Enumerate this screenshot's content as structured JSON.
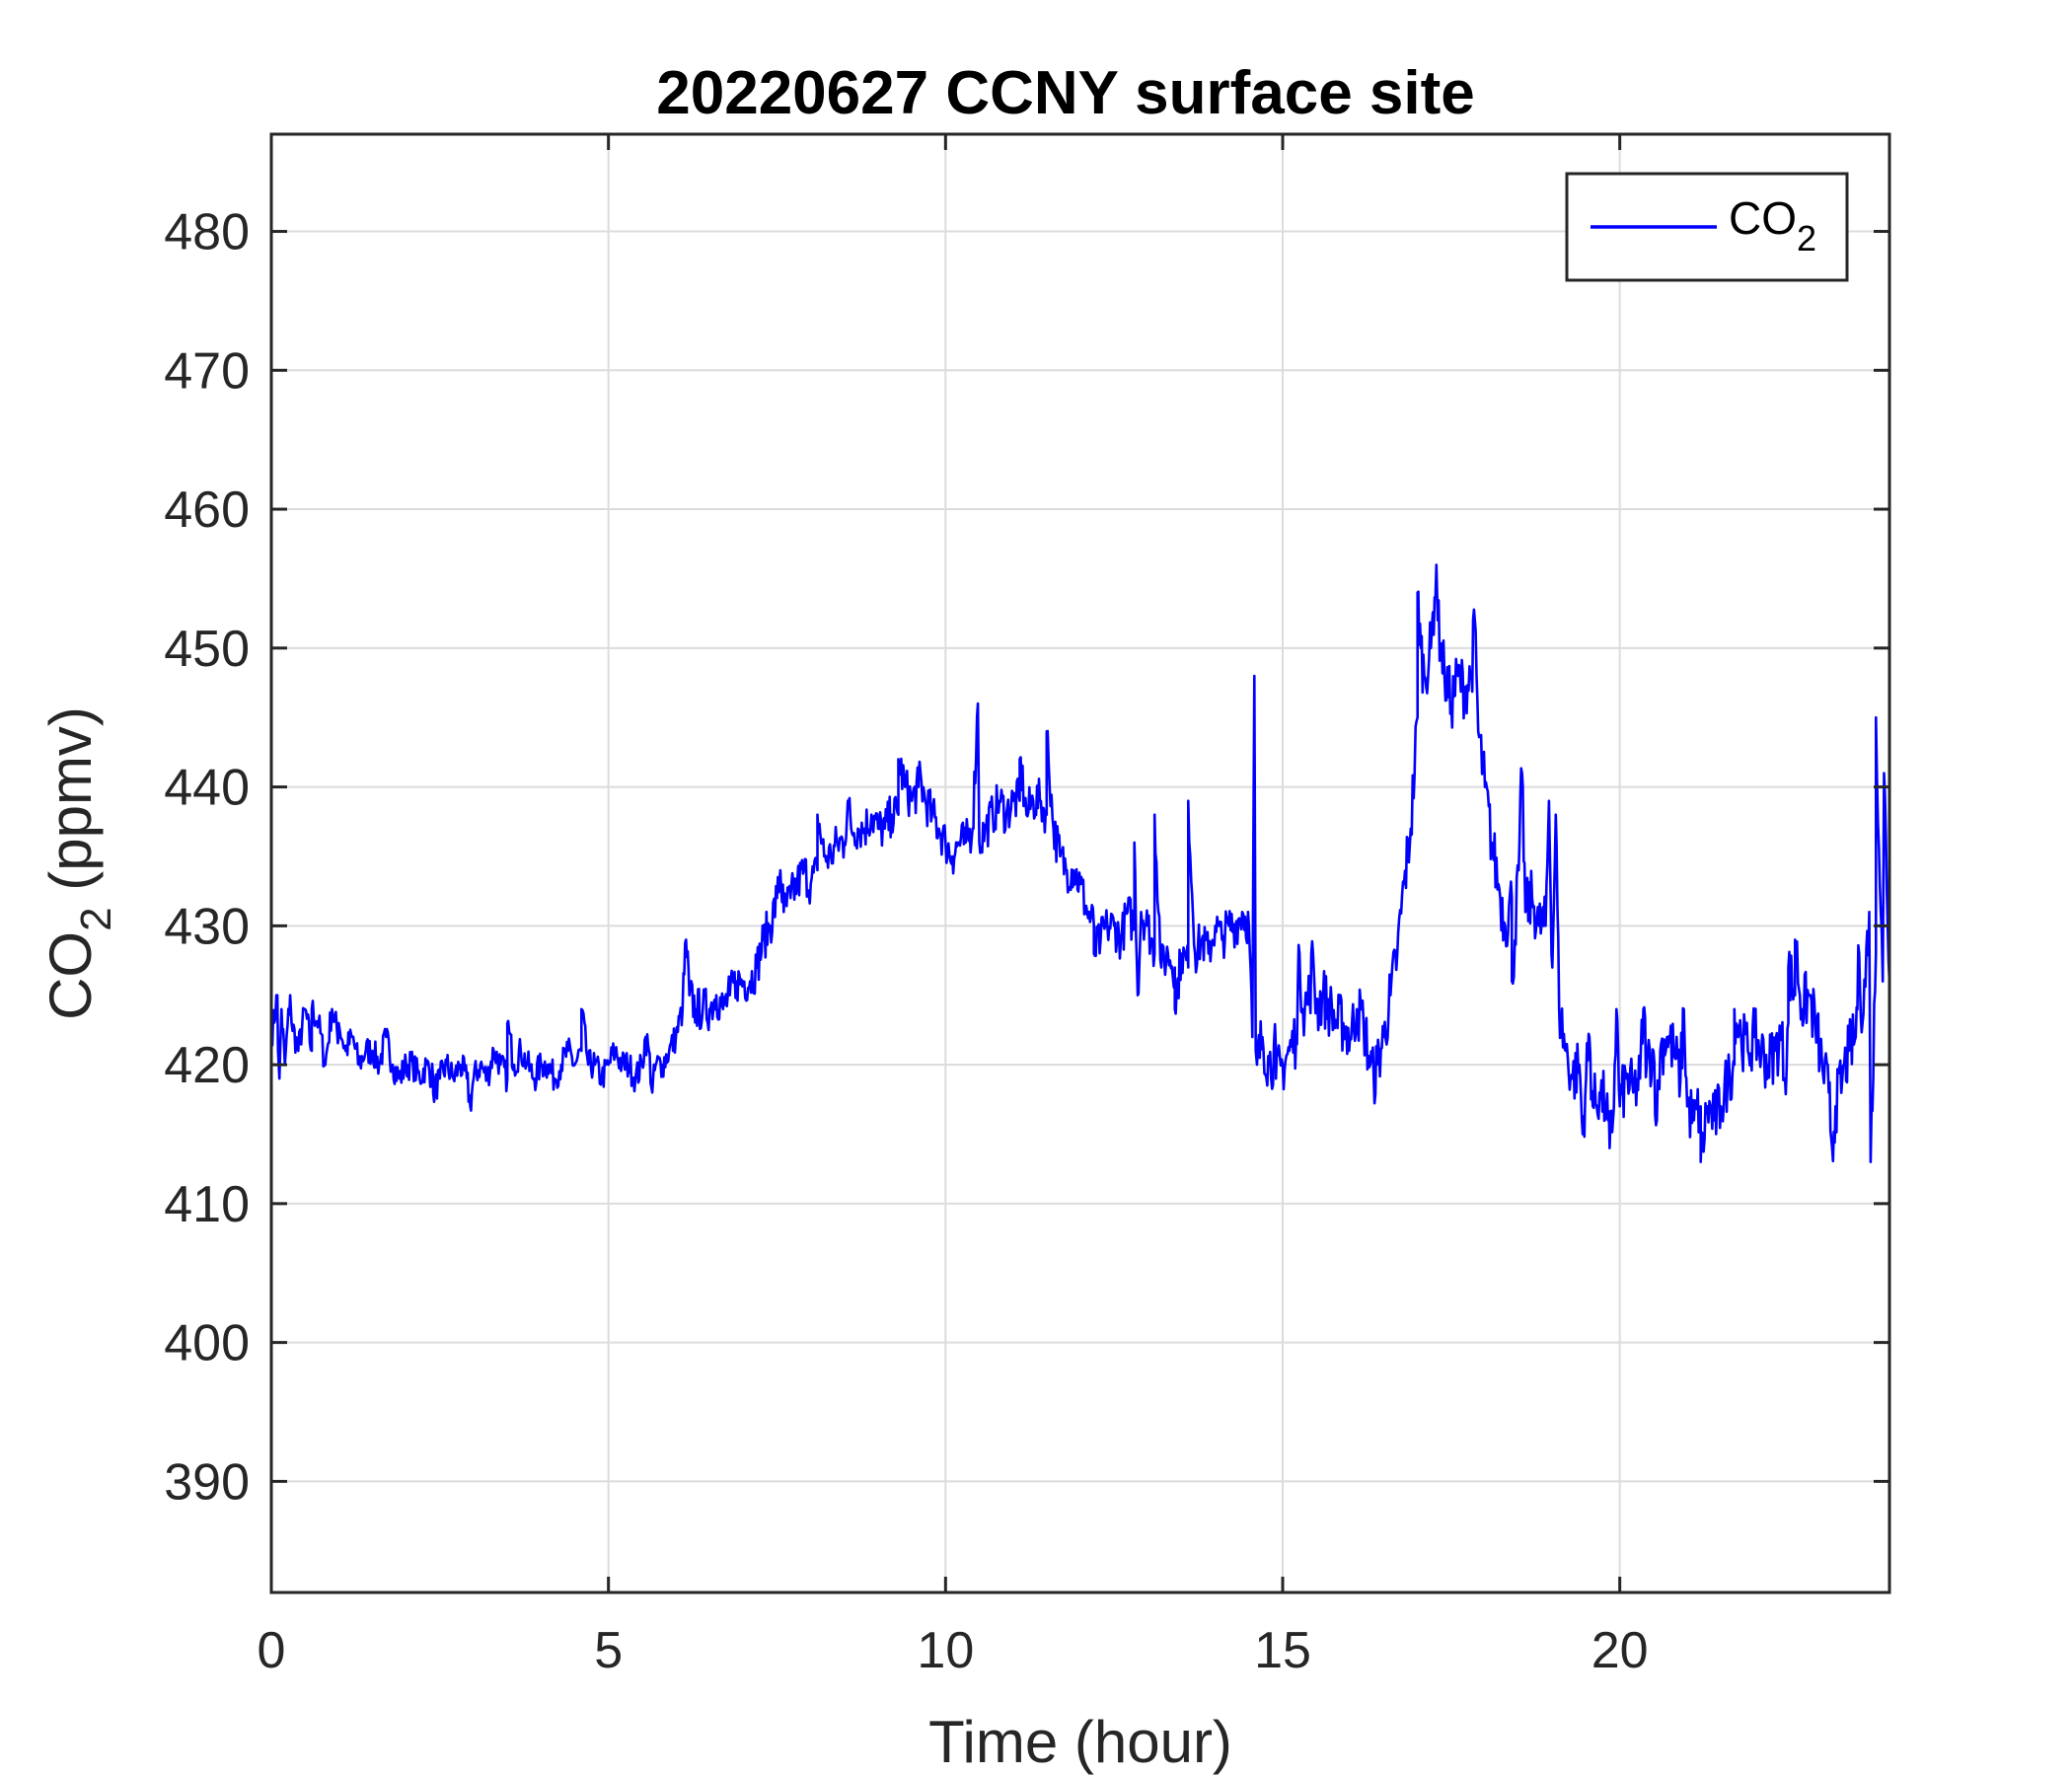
{
  "chart_data": {
    "type": "line",
    "title": "20220627 CCNY surface site",
    "xlabel": "Time (hour)",
    "ylabel": {
      "base": "CO",
      "sub": "2",
      "rest": " (ppmv)"
    },
    "xlim": [
      0,
      24
    ],
    "ylim": [
      382,
      487
    ],
    "xticks": [
      0,
      5,
      10,
      15,
      20
    ],
    "yticks": [
      390,
      400,
      410,
      420,
      430,
      440,
      450,
      460,
      470,
      480
    ],
    "grid": true,
    "legend_position": "top-right",
    "series": [
      {
        "name": {
          "base": "CO",
          "sub": "2"
        },
        "color": "#0000ff",
        "points": [
          [
            0.0,
            422
          ],
          [
            0.1,
            421
          ],
          [
            0.15,
            424
          ],
          [
            0.2,
            420
          ],
          [
            0.3,
            423
          ],
          [
            0.4,
            421
          ],
          [
            0.5,
            424
          ],
          [
            0.6,
            421
          ],
          [
            0.7,
            423
          ],
          [
            0.8,
            420
          ],
          [
            0.9,
            424
          ],
          [
            1.0,
            422
          ],
          [
            1.1,
            421
          ],
          [
            1.2,
            422
          ],
          [
            1.3,
            420
          ],
          [
            1.4,
            421
          ],
          [
            1.5,
            421
          ],
          [
            1.6,
            420
          ],
          [
            1.7,
            422
          ],
          [
            1.8,
            420
          ],
          [
            1.9,
            419
          ],
          [
            2.0,
            420
          ],
          [
            2.1,
            420
          ],
          [
            2.2,
            419
          ],
          [
            2.3,
            420
          ],
          [
            2.4,
            419
          ],
          [
            2.5,
            419
          ],
          [
            2.6,
            420
          ],
          [
            2.7,
            419
          ],
          [
            2.8,
            420
          ],
          [
            2.9,
            419
          ],
          [
            3.0,
            419
          ],
          [
            3.1,
            420
          ],
          [
            3.2,
            419
          ],
          [
            3.3,
            421
          ],
          [
            3.4,
            420
          ],
          [
            3.5,
            419
          ],
          [
            3.6,
            420
          ],
          [
            3.7,
            421
          ],
          [
            3.8,
            420
          ],
          [
            3.9,
            419
          ],
          [
            4.0,
            420
          ],
          [
            4.1,
            420
          ],
          [
            4.2,
            419
          ],
          [
            4.3,
            420
          ],
          [
            4.4,
            421
          ],
          [
            4.5,
            420
          ],
          [
            4.6,
            421
          ],
          [
            4.7,
            420
          ],
          [
            4.8,
            420
          ],
          [
            4.9,
            419
          ],
          [
            5.0,
            420
          ],
          [
            5.1,
            421
          ],
          [
            5.2,
            420
          ],
          [
            5.3,
            420
          ],
          [
            5.4,
            419
          ],
          [
            5.5,
            420
          ],
          [
            5.6,
            421
          ],
          [
            5.7,
            420
          ],
          [
            5.8,
            420
          ],
          [
            5.9,
            421
          ],
          [
            6.0,
            422
          ],
          [
            6.1,
            424
          ],
          [
            6.2,
            425
          ],
          [
            6.3,
            424
          ],
          [
            6.4,
            424
          ],
          [
            6.5,
            424
          ],
          [
            6.6,
            425
          ],
          [
            6.7,
            424
          ],
          [
            6.8,
            425
          ],
          [
            6.9,
            426
          ],
          [
            7.0,
            426
          ],
          [
            7.1,
            426
          ],
          [
            7.2,
            427
          ],
          [
            7.3,
            429
          ],
          [
            7.4,
            430
          ],
          [
            7.5,
            432
          ],
          [
            7.6,
            431
          ],
          [
            7.7,
            432
          ],
          [
            7.8,
            433
          ],
          [
            7.9,
            434
          ],
          [
            8.0,
            433
          ],
          [
            8.1,
            434
          ],
          [
            8.2,
            435
          ],
          [
            8.3,
            435
          ],
          [
            8.4,
            436
          ],
          [
            8.5,
            436
          ],
          [
            8.6,
            437
          ],
          [
            8.7,
            437
          ],
          [
            8.8,
            437
          ],
          [
            8.9,
            438
          ],
          [
            9.0,
            437
          ],
          [
            9.1,
            437
          ],
          [
            9.2,
            438
          ],
          [
            9.3,
            438
          ],
          [
            9.4,
            440
          ],
          [
            9.5,
            439
          ],
          [
            9.6,
            440
          ],
          [
            9.7,
            439
          ],
          [
            9.8,
            438
          ],
          [
            9.9,
            437
          ],
          [
            10.0,
            436
          ],
          [
            10.1,
            435
          ],
          [
            10.2,
            436
          ],
          [
            10.3,
            436
          ],
          [
            10.4,
            437
          ],
          [
            10.5,
            436
          ],
          [
            10.6,
            437
          ],
          [
            10.7,
            438
          ],
          [
            10.8,
            439
          ],
          [
            10.9,
            438
          ],
          [
            11.0,
            439
          ],
          [
            11.1,
            439
          ],
          [
            11.2,
            438
          ],
          [
            11.3,
            439
          ],
          [
            11.4,
            439
          ],
          [
            11.5,
            438
          ],
          [
            11.6,
            437
          ],
          [
            11.7,
            435
          ],
          [
            11.8,
            434
          ],
          [
            11.9,
            434
          ],
          [
            12.0,
            433
          ],
          [
            12.1,
            431
          ],
          [
            12.2,
            430
          ],
          [
            12.3,
            429
          ],
          [
            12.4,
            430
          ],
          [
            12.5,
            430
          ],
          [
            12.6,
            429
          ],
          [
            12.7,
            431
          ],
          [
            12.8,
            430
          ],
          [
            12.9,
            431
          ],
          [
            13.0,
            430
          ],
          [
            13.1,
            428
          ],
          [
            13.2,
            427
          ],
          [
            13.3,
            428
          ],
          [
            13.4,
            427
          ],
          [
            13.5,
            428
          ],
          [
            13.6,
            427
          ],
          [
            13.7,
            428
          ],
          [
            13.8,
            429
          ],
          [
            13.9,
            428
          ],
          [
            14.0,
            430
          ],
          [
            14.1,
            429
          ],
          [
            14.2,
            430
          ],
          [
            14.3,
            430
          ],
          [
            14.4,
            431
          ],
          [
            14.5,
            430
          ],
          [
            14.55,
            422
          ],
          [
            14.6,
            421
          ],
          [
            14.7,
            422
          ],
          [
            14.8,
            420
          ],
          [
            14.9,
            421
          ],
          [
            15.0,
            420
          ],
          [
            15.1,
            421
          ],
          [
            15.2,
            422
          ],
          [
            15.3,
            424
          ],
          [
            15.4,
            425
          ],
          [
            15.5,
            424
          ],
          [
            15.6,
            425
          ],
          [
            15.7,
            424
          ],
          [
            15.8,
            423
          ],
          [
            15.9,
            423
          ],
          [
            16.0,
            422
          ],
          [
            16.1,
            424
          ],
          [
            16.2,
            423
          ],
          [
            16.3,
            420
          ],
          [
            16.4,
            420
          ],
          [
            16.5,
            422
          ],
          [
            16.6,
            425
          ],
          [
            16.7,
            428
          ],
          [
            16.8,
            433
          ],
          [
            16.9,
            437
          ],
          [
            17.0,
            445
          ],
          [
            17.05,
            450
          ],
          [
            17.1,
            448
          ],
          [
            17.2,
            450
          ],
          [
            17.3,
            452
          ],
          [
            17.4,
            448
          ],
          [
            17.5,
            446
          ],
          [
            17.6,
            448
          ],
          [
            17.7,
            447
          ],
          [
            17.8,
            448
          ],
          [
            17.9,
            444
          ],
          [
            18.0,
            440
          ],
          [
            18.1,
            436
          ],
          [
            18.2,
            433
          ],
          [
            18.3,
            430
          ],
          [
            18.4,
            432
          ],
          [
            18.5,
            434
          ],
          [
            18.6,
            431
          ],
          [
            18.7,
            432
          ],
          [
            18.8,
            430
          ],
          [
            18.9,
            430
          ],
          [
            19.0,
            427
          ],
          [
            19.1,
            424
          ],
          [
            19.2,
            421
          ],
          [
            19.3,
            419
          ],
          [
            19.4,
            420
          ],
          [
            19.5,
            419
          ],
          [
            19.6,
            417
          ],
          [
            19.7,
            418
          ],
          [
            19.8,
            417
          ],
          [
            19.9,
            416
          ],
          [
            20.0,
            417
          ],
          [
            20.1,
            419
          ],
          [
            20.2,
            418
          ],
          [
            20.3,
            419
          ],
          [
            20.4,
            420
          ],
          [
            20.5,
            421
          ],
          [
            20.6,
            421
          ],
          [
            20.7,
            422
          ],
          [
            20.8,
            421
          ],
          [
            20.9,
            419
          ],
          [
            21.0,
            417
          ],
          [
            21.1,
            416
          ],
          [
            21.2,
            417
          ],
          [
            21.3,
            417
          ],
          [
            21.4,
            416
          ],
          [
            21.5,
            417
          ],
          [
            21.6,
            419
          ],
          [
            21.7,
            420
          ],
          [
            21.8,
            422
          ],
          [
            21.9,
            421
          ],
          [
            22.0,
            422
          ],
          [
            22.1,
            421
          ],
          [
            22.2,
            420
          ],
          [
            22.3,
            421
          ],
          [
            22.4,
            422
          ],
          [
            22.5,
            423
          ],
          [
            22.6,
            425
          ],
          [
            22.7,
            424
          ],
          [
            22.8,
            425
          ],
          [
            22.9,
            423
          ],
          [
            23.0,
            420
          ],
          [
            23.1,
            418
          ],
          [
            23.2,
            417
          ],
          [
            23.3,
            419
          ],
          [
            23.4,
            421
          ],
          [
            23.5,
            422
          ],
          [
            23.6,
            423
          ],
          [
            23.7,
            431
          ],
          [
            23.8,
            428
          ],
          [
            23.9,
            426
          ],
          [
            24.0,
            426
          ]
        ],
        "spikes": [
          [
            0.09,
            425
          ],
          [
            0.28,
            425
          ],
          [
            0.6,
            424
          ],
          [
            1.0,
            423
          ],
          [
            3.5,
            423
          ],
          [
            4.6,
            424
          ],
          [
            5.55,
            422
          ],
          [
            6.15,
            429
          ],
          [
            7.55,
            434
          ],
          [
            8.1,
            438
          ],
          [
            8.55,
            439
          ],
          [
            9.3,
            442
          ],
          [
            9.6,
            441
          ],
          [
            10.48,
            446
          ],
          [
            11.1,
            442
          ],
          [
            11.5,
            444
          ],
          [
            12.8,
            436
          ],
          [
            13.1,
            438
          ],
          [
            13.6,
            439
          ],
          [
            14.58,
            448
          ],
          [
            15.25,
            428
          ],
          [
            15.45,
            428
          ],
          [
            17.0,
            454
          ],
          [
            17.28,
            456
          ],
          [
            17.85,
            452
          ],
          [
            18.55,
            441
          ],
          [
            18.95,
            439
          ],
          [
            19.05,
            438
          ],
          [
            19.55,
            422
          ],
          [
            19.95,
            424
          ],
          [
            20.35,
            424
          ],
          [
            20.95,
            424
          ],
          [
            21.7,
            424
          ],
          [
            22.5,
            427
          ],
          [
            22.6,
            429
          ],
          [
            23.55,
            428
          ],
          [
            23.8,
            445
          ],
          [
            23.92,
            441
          ]
        ],
        "dips": [
          [
            0.12,
            419
          ],
          [
            2.4,
            418
          ],
          [
            2.95,
            417
          ],
          [
            5.65,
            418
          ],
          [
            12.2,
            428
          ],
          [
            12.85,
            425
          ],
          [
            13.4,
            424
          ],
          [
            14.62,
            420
          ],
          [
            14.9,
            419
          ],
          [
            16.35,
            419
          ],
          [
            18.4,
            426
          ],
          [
            19.45,
            415
          ],
          [
            19.85,
            414
          ],
          [
            20.55,
            416
          ],
          [
            21.2,
            413
          ],
          [
            22.45,
            419
          ],
          [
            23.15,
            414
          ],
          [
            23.72,
            413
          ]
        ]
      }
    ]
  }
}
